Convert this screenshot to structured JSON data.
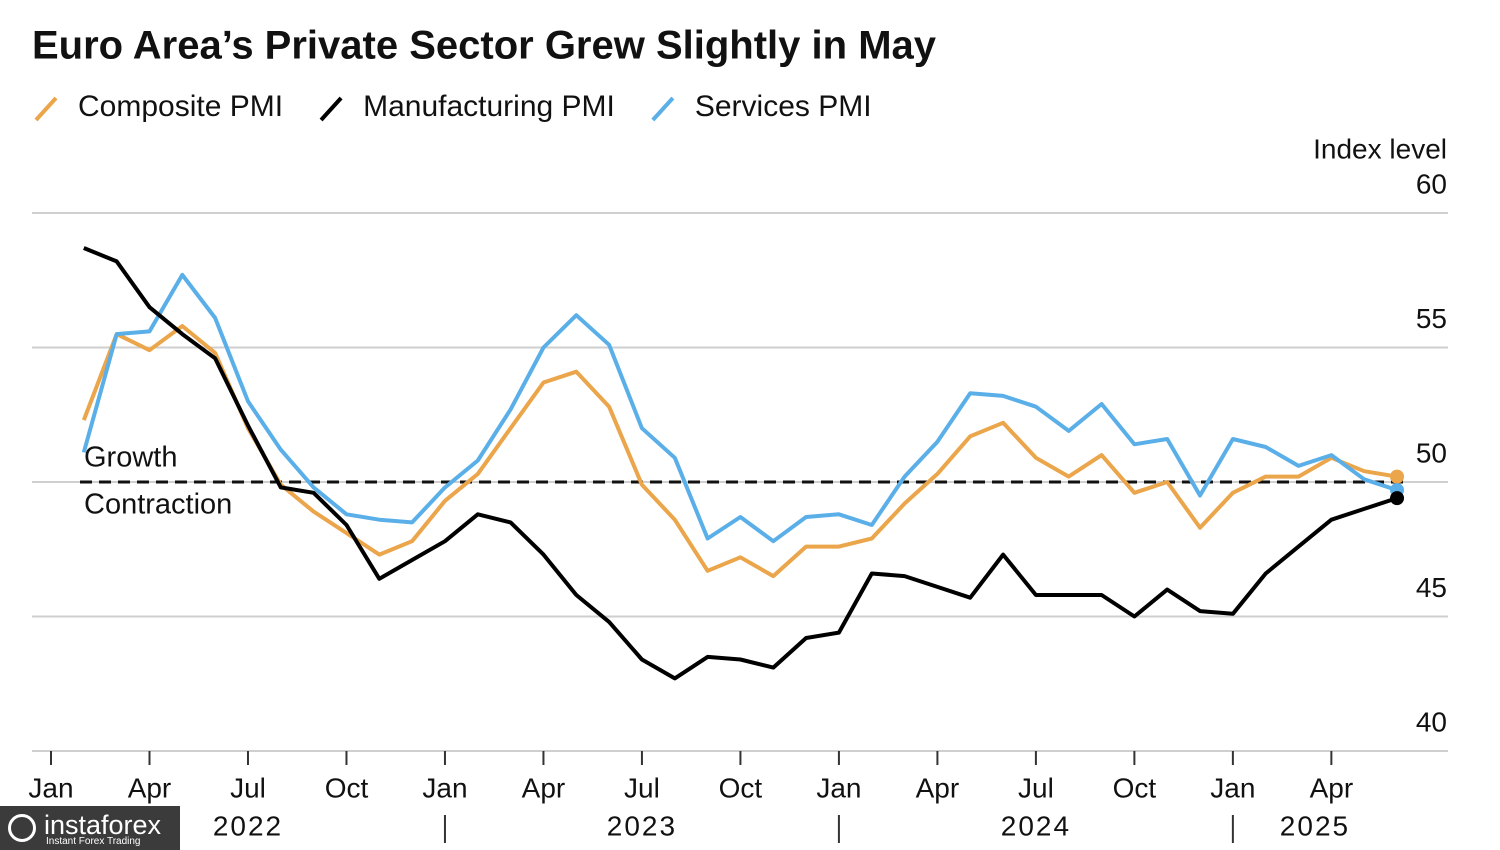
{
  "chart_data": {
    "type": "line",
    "title": "Euro Area’s Private Sector Grew Slightly in May",
    "y_axis_label": "Index level",
    "x": [
      "2022-01",
      "2022-02",
      "2022-03",
      "2022-04",
      "2022-05",
      "2022-06",
      "2022-07",
      "2022-08",
      "2022-09",
      "2022-10",
      "2022-11",
      "2022-12",
      "2023-01",
      "2023-02",
      "2023-03",
      "2023-04",
      "2023-05",
      "2023-06",
      "2023-07",
      "2023-08",
      "2023-09",
      "2023-10",
      "2023-11",
      "2023-12",
      "2024-01",
      "2024-02",
      "2024-03",
      "2024-04",
      "2024-05",
      "2024-06",
      "2024-07",
      "2024-08",
      "2024-09",
      "2024-10",
      "2024-11",
      "2024-12",
      "2025-01",
      "2025-02",
      "2025-03",
      "2025-04",
      "2025-05"
    ],
    "series": [
      {
        "name": "Composite PMI",
        "color": "#eba54a",
        "values": [
          52.3,
          55.5,
          54.9,
          55.8,
          54.8,
          52.0,
          49.9,
          48.9,
          48.1,
          47.3,
          47.8,
          49.3,
          50.3,
          52.0,
          53.7,
          54.1,
          52.8,
          49.9,
          48.6,
          46.7,
          47.2,
          46.5,
          47.6,
          47.6,
          47.9,
          49.2,
          50.3,
          51.7,
          52.2,
          50.9,
          50.2,
          51.0,
          49.6,
          50.0,
          48.3,
          49.6,
          50.2,
          50.2,
          50.9,
          50.4,
          50.2
        ]
      },
      {
        "name": "Manufacturing PMI",
        "color": "#000000",
        "values": [
          58.7,
          58.2,
          56.5,
          55.5,
          54.6,
          52.1,
          49.8,
          49.6,
          48.4,
          46.4,
          47.1,
          47.8,
          48.8,
          48.5,
          47.3,
          45.8,
          44.8,
          43.4,
          42.7,
          43.5,
          43.4,
          43.1,
          44.2,
          44.4,
          46.6,
          46.5,
          46.1,
          45.7,
          47.3,
          45.8,
          45.8,
          45.8,
          45.0,
          46.0,
          45.2,
          45.1,
          46.6,
          47.6,
          48.6,
          49.0,
          49.4
        ]
      },
      {
        "name": "Services PMI",
        "color": "#5aafe8",
        "values": [
          51.1,
          55.5,
          55.6,
          57.7,
          56.1,
          53.0,
          51.2,
          49.8,
          48.8,
          48.6,
          48.5,
          49.8,
          50.8,
          52.7,
          55.0,
          56.2,
          55.1,
          52.0,
          50.9,
          47.9,
          48.7,
          47.8,
          48.7,
          48.8,
          48.4,
          50.2,
          51.5,
          53.3,
          53.2,
          52.8,
          51.9,
          52.9,
          51.4,
          51.6,
          49.5,
          51.6,
          51.3,
          50.6,
          51.0,
          50.1,
          49.7
        ]
      }
    ],
    "ylim": [
      40,
      60
    ],
    "yticks": [
      40,
      45,
      50,
      55,
      60
    ],
    "grid": true,
    "threshold": 50,
    "threshold_labels": [
      "Growth",
      "Contraction"
    ],
    "xticks": [
      {
        "value": "2022-01",
        "label": "Jan"
      },
      {
        "value": "2022-04",
        "label": "Apr"
      },
      {
        "value": "2022-07",
        "label": "Jul"
      },
      {
        "value": "2022-10",
        "label": "Oct"
      },
      {
        "value": "2023-01",
        "label": "Jan"
      },
      {
        "value": "2023-04",
        "label": "Apr"
      },
      {
        "value": "2023-07",
        "label": "Jul"
      },
      {
        "value": "2023-10",
        "label": "Oct"
      },
      {
        "value": "2024-01",
        "label": "Jan"
      },
      {
        "value": "2024-04",
        "label": "Apr"
      },
      {
        "value": "2024-07",
        "label": "Jul"
      },
      {
        "value": "2024-10",
        "label": "Oct"
      },
      {
        "value": "2025-01",
        "label": "Jan"
      },
      {
        "value": "2025-04",
        "label": "Apr"
      }
    ],
    "year_labels": [
      "2022",
      "2023",
      "2024",
      "2025"
    ]
  },
  "watermark": {
    "name": "instaforex",
    "tagline": "Instant Forex Trading"
  }
}
